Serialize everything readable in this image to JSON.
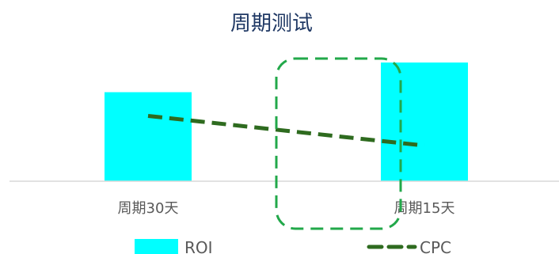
{
  "chart_data": {
    "type": "bar",
    "title": "周期测试",
    "categories": [
      "周期30天",
      "周期15天"
    ],
    "series": [
      {
        "name": "ROI",
        "type": "bar",
        "values": [
          0.75,
          1.0
        ],
        "color": "#00ffff"
      },
      {
        "name": "CPC",
        "type": "line",
        "style": "dashed",
        "values": [
          0.55,
          0.3
        ],
        "color": "#2e6b1f"
      }
    ],
    "grid": false,
    "y_axis_visible": false,
    "legend_position": "bottom",
    "annotation": {
      "shape": "dashed rounded rectangle",
      "color": "#22a84a"
    }
  }
}
